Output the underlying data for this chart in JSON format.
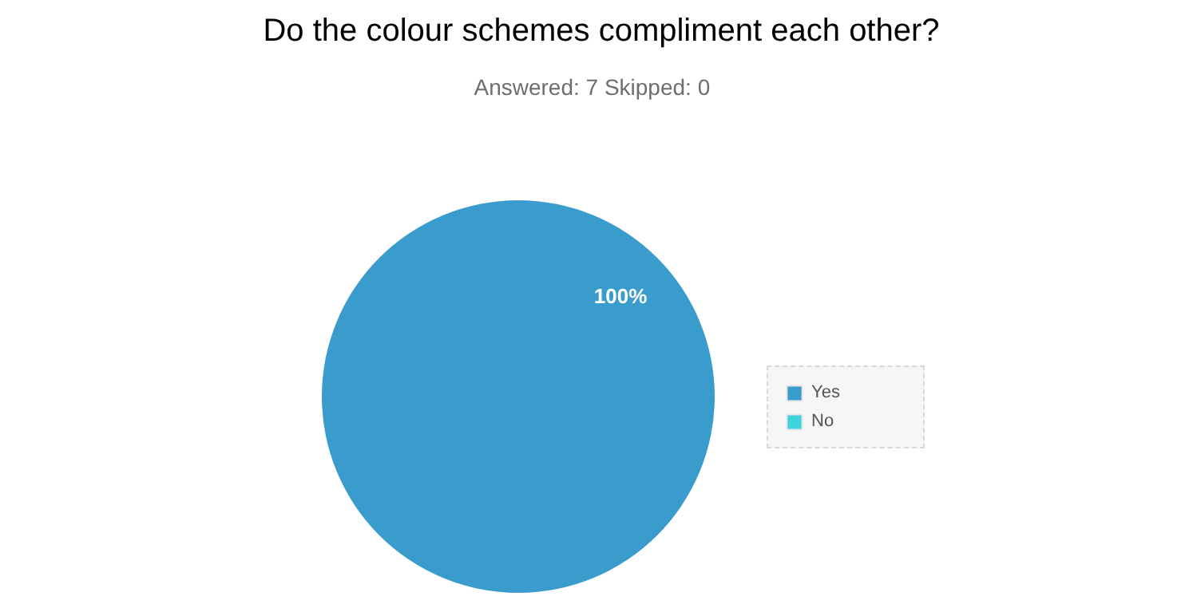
{
  "chart_data": {
    "type": "pie",
    "title": "Do the colour schemes compliment each other?",
    "subtitle": "Answered: 7    Skipped: 0",
    "categories": [
      "Yes",
      "No"
    ],
    "values": [
      100,
      0
    ],
    "colors": [
      "#3a9bcd",
      "#3fd3dd"
    ],
    "value_labels": [
      "100%",
      null
    ],
    "legend": "right"
  }
}
